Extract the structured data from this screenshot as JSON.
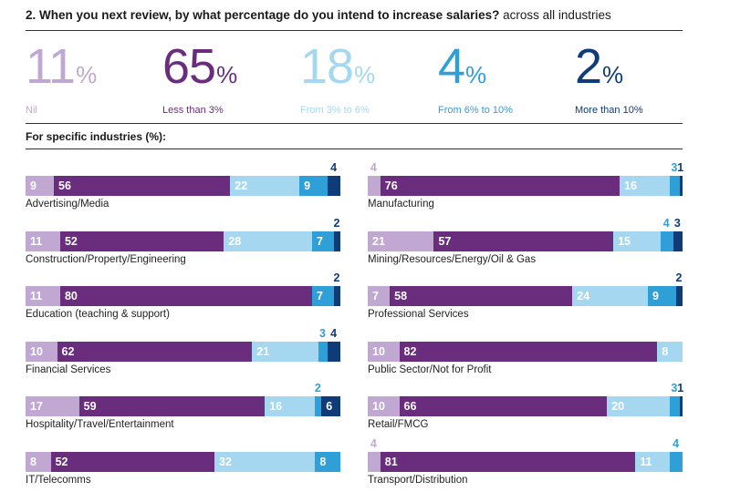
{
  "title": {
    "prefix": "2. When you next review, by what percentage do you intend to increase salaries?",
    "suffix": " across all industries"
  },
  "colors": {
    "nil": "#c0a8d2",
    "lt3": "#6a2d7d",
    "3to6": "#a5d8f0",
    "6to10": "#2f9fd8",
    "gt10": "#0f3b78"
  },
  "overall": [
    {
      "value": "11",
      "pct": "%",
      "label": "Nil"
    },
    {
      "value": "65",
      "pct": "%",
      "label": "Less than 3%"
    },
    {
      "value": "18",
      "pct": "%",
      "label": "From 3% to 6%"
    },
    {
      "value": "4",
      "pct": "%",
      "label": "From 6% to 10%"
    },
    {
      "value": "2",
      "pct": "%",
      "label": "More than 10%"
    }
  ],
  "subhead": "For specific industries (%):",
  "chart_data": {
    "type": "bar",
    "orientation": "horizontal-stacked-100",
    "series_keys": [
      "nil",
      "lt3",
      "3to6",
      "6to10",
      "gt10"
    ],
    "categories": [
      "Advertising/Media",
      "Construction/Property/Engineering",
      "Education (teaching & support)",
      "Financial Services",
      "Hospitality/Travel/Entertainment",
      "IT/Telecomms",
      "Manufacturing",
      "Mining/Resources/Energy/Oil & Gas",
      "Professional Services",
      "Public Sector/Not for Profit",
      "Retail/FMCG",
      "Transport/Distribution"
    ],
    "rows": [
      [
        9,
        56,
        22,
        9,
        4
      ],
      [
        11,
        52,
        28,
        7,
        2
      ],
      [
        11,
        80,
        0,
        7,
        2
      ],
      [
        10,
        62,
        21,
        3,
        4
      ],
      [
        17,
        59,
        16,
        2,
        6
      ],
      [
        8,
        52,
        32,
        8,
        0
      ],
      [
        4,
        76,
        16,
        3,
        1
      ],
      [
        21,
        57,
        15,
        4,
        3
      ],
      [
        7,
        58,
        24,
        9,
        2
      ],
      [
        10,
        82,
        8,
        0,
        0
      ],
      [
        10,
        66,
        20,
        3,
        1
      ],
      [
        4,
        81,
        11,
        4,
        0
      ]
    ]
  }
}
